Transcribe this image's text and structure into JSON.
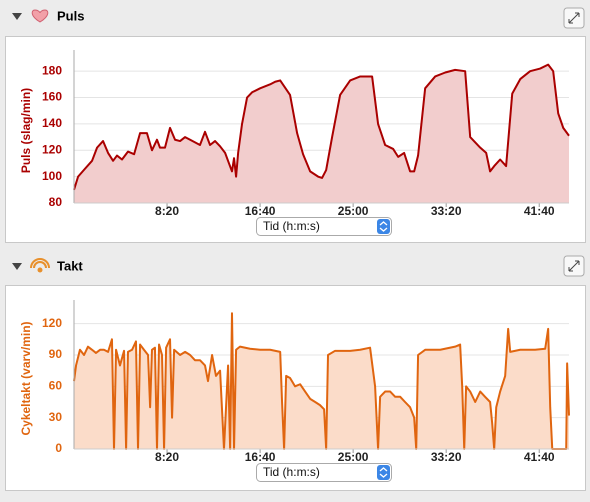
{
  "chart_data": [
    {
      "type": "area",
      "title": "Puls",
      "ylabel": "Puls (slag/min)",
      "xlabel": "Tid (h:m:s)",
      "color": "#aa0000",
      "fill": "#f2cdcd",
      "grid": true,
      "xlim": [
        0,
        2660
      ],
      "ylim": [
        80,
        190
      ],
      "yticks": [
        80,
        100,
        120,
        140,
        160,
        180
      ],
      "xticks": [
        {
          "value": 500,
          "label": "8:20"
        },
        {
          "value": 1000,
          "label": "16:40"
        },
        {
          "value": 1500,
          "label": "25:00"
        },
        {
          "value": 2000,
          "label": "33:20"
        },
        {
          "value": 2500,
          "label": "41:40"
        }
      ],
      "x": [
        0,
        22,
        59,
        97,
        124,
        156,
        183,
        210,
        231,
        258,
        290,
        323,
        355,
        392,
        419,
        446,
        462,
        489,
        516,
        543,
        570,
        597,
        624,
        677,
        704,
        731,
        758,
        785,
        812,
        833,
        849,
        860,
        871,
        882,
        903,
        930,
        957,
        1000,
        1054,
        1081,
        1108,
        1161,
        1199,
        1231,
        1269,
        1312,
        1333,
        1355,
        1387,
        1430,
        1484,
        1538,
        1602,
        1634,
        1672,
        1715,
        1742,
        1774,
        1806,
        1828,
        1849,
        1887,
        1941,
        1995,
        2048,
        2102,
        2129,
        2183,
        2215,
        2236,
        2258,
        2290,
        2322,
        2355,
        2398,
        2451,
        2505,
        2548,
        2575,
        2602,
        2629,
        2660
      ],
      "values": [
        90,
        100,
        106,
        112,
        122,
        127,
        118,
        112,
        116,
        113,
        119,
        117,
        133,
        133,
        120,
        128,
        122,
        122,
        137,
        128,
        127,
        130,
        128,
        124,
        134,
        124,
        127,
        123,
        118,
        110,
        104,
        114,
        100,
        118,
        140,
        160,
        164,
        167,
        170,
        172,
        173,
        162,
        133,
        117,
        104,
        100,
        99,
        105,
        130,
        162,
        173,
        176,
        176,
        140,
        124,
        121,
        115,
        118,
        104,
        104,
        116,
        167,
        176,
        179,
        181,
        180,
        130,
        122,
        118,
        104,
        108,
        113,
        108,
        163,
        174,
        180,
        182,
        185,
        180,
        148,
        137,
        131
      ]
    },
    {
      "type": "area",
      "title": "Takt",
      "ylabel": "Cykeltakt (varv/min)",
      "xlabel": "Tid (h:m:s)",
      "color": "#e0650f",
      "fill": "#fbdcc9",
      "grid": true,
      "xlim": [
        0,
        2660
      ],
      "ylim": [
        0,
        135
      ],
      "yticks": [
        0,
        30,
        60,
        90,
        120
      ],
      "xticks": [
        {
          "value": 500,
          "label": "8:20"
        },
        {
          "value": 1000,
          "label": "16:40"
        },
        {
          "value": 1500,
          "label": "25:00"
        },
        {
          "value": 2000,
          "label": "33:20"
        },
        {
          "value": 2500,
          "label": "41:40"
        }
      ],
      "x": [
        0,
        11,
        32,
        54,
        75,
        97,
        118,
        140,
        161,
        183,
        204,
        215,
        226,
        247,
        269,
        280,
        290,
        312,
        333,
        344,
        355,
        376,
        398,
        409,
        419,
        435,
        446,
        457,
        473,
        484,
        495,
        516,
        527,
        538,
        570,
        597,
        624,
        650,
        677,
        704,
        720,
        742,
        763,
        785,
        806,
        828,
        839,
        849,
        860,
        871,
        892,
        946,
        1000,
        1054,
        1108,
        1118,
        1129,
        1140,
        1161,
        1188,
        1215,
        1242,
        1269,
        1296,
        1322,
        1344,
        1355,
        1365,
        1403,
        1484,
        1538,
        1591,
        1618,
        1634,
        1645,
        1672,
        1699,
        1726,
        1753,
        1779,
        1806,
        1828,
        1839,
        1849,
        1887,
        1968,
        2048,
        2075,
        2086,
        2097,
        2107,
        2129,
        2156,
        2183,
        2209,
        2236,
        2247,
        2258,
        2269,
        2290,
        2317,
        2333,
        2344,
        2398,
        2478,
        2532,
        2548,
        2559,
        2570,
        2581,
        2613,
        2645,
        2650,
        2660
      ],
      "values": [
        65,
        80,
        95,
        90,
        98,
        95,
        92,
        95,
        95,
        93,
        105,
        0,
        95,
        80,
        94,
        0,
        93,
        95,
        103,
        0,
        100,
        95,
        90,
        40,
        95,
        97,
        0,
        100,
        90,
        0,
        97,
        105,
        30,
        95,
        90,
        93,
        90,
        85,
        85,
        80,
        65,
        90,
        70,
        75,
        0,
        80,
        0,
        130,
        0,
        95,
        98,
        96,
        95,
        95,
        93,
        45,
        0,
        70,
        68,
        60,
        62,
        55,
        48,
        45,
        42,
        38,
        0,
        90,
        94,
        94,
        95,
        97,
        60,
        0,
        50,
        55,
        55,
        50,
        50,
        45,
        40,
        30,
        0,
        90,
        95,
        95,
        98,
        100,
        60,
        0,
        60,
        55,
        45,
        55,
        50,
        45,
        25,
        0,
        40,
        55,
        70,
        115,
        93,
        95,
        95,
        96,
        115,
        40,
        0,
        0,
        0,
        0,
        82,
        32
      ]
    }
  ]
}
